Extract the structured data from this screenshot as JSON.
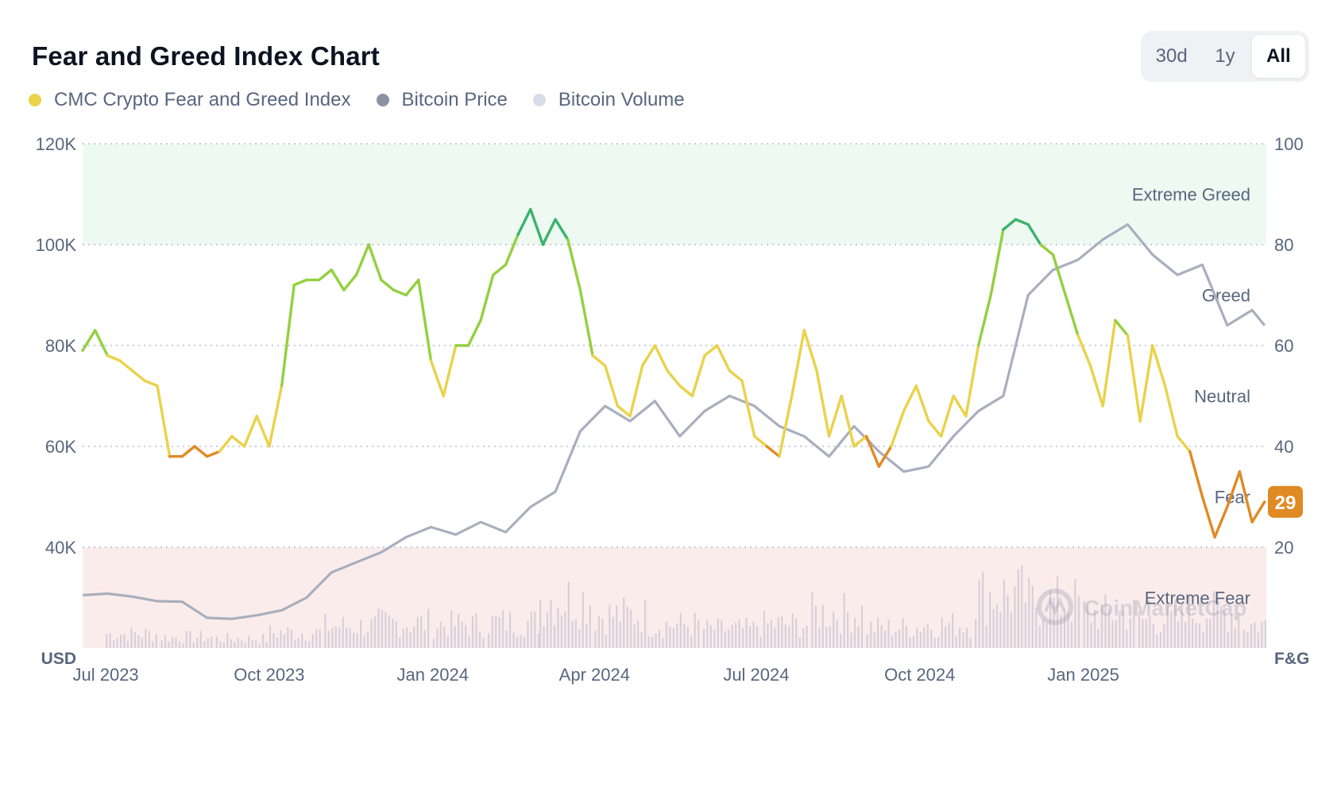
{
  "header": {
    "title": "Fear and Greed Index Chart",
    "tabs": [
      {
        "label": "30d",
        "active": false
      },
      {
        "label": "1y",
        "active": false
      },
      {
        "label": "All",
        "active": true
      }
    ]
  },
  "legend": [
    {
      "label": "CMC Crypto Fear and Greed Index",
      "color": "#ead24a"
    },
    {
      "label": "Bitcoin Price",
      "color": "#8b93a3"
    },
    {
      "label": "Bitcoin Volume",
      "color": "#d8dce8"
    }
  ],
  "colors": {
    "extreme_greed": "#3bb36b",
    "greed": "#93d040",
    "neutral": "#ead24a",
    "fear": "#e08a24",
    "extreme_fear": "#e03a3e",
    "btc_price": "#a8afbd",
    "btc_volume": "#d9cfda",
    "extreme_greed_band": "#eef9f2",
    "extreme_fear_band": "#fbecec"
  },
  "watermark": "CoinMarketCap",
  "chart_data": {
    "type": "line",
    "x_start": "2023-06-18",
    "x_end": "2025-04-14",
    "x_ticks": [
      "Jul 2023",
      "Oct 2023",
      "Jan 2024",
      "Apr 2024",
      "Jul 2024",
      "Oct 2024",
      "Jan 2025"
    ],
    "y_left": {
      "unit": "USD",
      "min": 20000,
      "max": 120000,
      "ticks": [
        "120K",
        "100K",
        "80K",
        "60K",
        "40K"
      ]
    },
    "y_right": {
      "unit": "F&G",
      "min": 0,
      "max": 100,
      "ticks": [
        "100",
        "80",
        "60",
        "40",
        "20"
      ]
    },
    "zones": [
      "Extreme Greed",
      "Greed",
      "Neutral",
      "Fear",
      "Extreme Fear"
    ],
    "current_value": "29",
    "series": [
      {
        "name": "CMC Crypto Fear and Greed Index",
        "axis": "right",
        "x": [
          "2023-06-18",
          "2023-06-25",
          "2023-07-02",
          "2023-07-09",
          "2023-07-16",
          "2023-07-23",
          "2023-07-30",
          "2023-08-06",
          "2023-08-13",
          "2023-08-20",
          "2023-08-27",
          "2023-09-03",
          "2023-09-10",
          "2023-09-17",
          "2023-09-24",
          "2023-10-01",
          "2023-10-08",
          "2023-10-15",
          "2023-10-22",
          "2023-10-29",
          "2023-11-05",
          "2023-11-12",
          "2023-11-19",
          "2023-11-26",
          "2023-12-03",
          "2023-12-10",
          "2023-12-17",
          "2023-12-24",
          "2023-12-31",
          "2024-01-07",
          "2024-01-14",
          "2024-01-21",
          "2024-01-28",
          "2024-02-04",
          "2024-02-11",
          "2024-02-18",
          "2024-02-25",
          "2024-03-03",
          "2024-03-10",
          "2024-03-17",
          "2024-03-24",
          "2024-03-31",
          "2024-04-07",
          "2024-04-14",
          "2024-04-21",
          "2024-04-28",
          "2024-05-05",
          "2024-05-12",
          "2024-05-19",
          "2024-05-26",
          "2024-06-02",
          "2024-06-09",
          "2024-06-16",
          "2024-06-23",
          "2024-06-30",
          "2024-07-07",
          "2024-07-14",
          "2024-07-21",
          "2024-07-28",
          "2024-08-04",
          "2024-08-11",
          "2024-08-18",
          "2024-08-25",
          "2024-09-01",
          "2024-09-08",
          "2024-09-15",
          "2024-09-22",
          "2024-09-29",
          "2024-10-06",
          "2024-10-13",
          "2024-10-20",
          "2024-10-27",
          "2024-11-03",
          "2024-11-10",
          "2024-11-17",
          "2024-11-24",
          "2024-12-01",
          "2024-12-08",
          "2024-12-15",
          "2024-12-22",
          "2024-12-29",
          "2025-01-05",
          "2025-01-12",
          "2025-01-19",
          "2025-01-26",
          "2025-02-02",
          "2025-02-09",
          "2025-02-16",
          "2025-02-23",
          "2025-03-02",
          "2025-03-09",
          "2025-03-16",
          "2025-03-23",
          "2025-03-30",
          "2025-04-06",
          "2025-04-13"
        ],
        "values": [
          59,
          63,
          58,
          57,
          55,
          53,
          52,
          38,
          38,
          40,
          38,
          39,
          42,
          40,
          46,
          40,
          52,
          72,
          73,
          73,
          75,
          71,
          74,
          80,
          73,
          71,
          70,
          73,
          57,
          50,
          60,
          60,
          65,
          74,
          76,
          82,
          87,
          80,
          85,
          81,
          71,
          58,
          56,
          48,
          46,
          56,
          60,
          55,
          52,
          50,
          58,
          60,
          55,
          53,
          42,
          40,
          38,
          50,
          63,
          55,
          42,
          50,
          40,
          42,
          36,
          40,
          47,
          52,
          45,
          42,
          50,
          46,
          60,
          70,
          83,
          85,
          84,
          80,
          78,
          70,
          62,
          56,
          48,
          65,
          62,
          45,
          60,
          52,
          42,
          39,
          30,
          22,
          28,
          35,
          25,
          29
        ]
      },
      {
        "name": "Bitcoin Price",
        "axis": "left",
        "x": [
          "2023-06-18",
          "2023-07-02",
          "2023-07-16",
          "2023-07-30",
          "2023-08-13",
          "2023-08-27",
          "2023-09-10",
          "2023-09-24",
          "2023-10-08",
          "2023-10-22",
          "2023-11-05",
          "2023-11-19",
          "2023-12-03",
          "2023-12-17",
          "2023-12-31",
          "2024-01-14",
          "2024-01-28",
          "2024-02-11",
          "2024-02-25",
          "2024-03-10",
          "2024-03-24",
          "2024-04-07",
          "2024-04-21",
          "2024-05-05",
          "2024-05-19",
          "2024-06-02",
          "2024-06-16",
          "2024-06-30",
          "2024-07-14",
          "2024-07-28",
          "2024-08-11",
          "2024-08-25",
          "2024-09-08",
          "2024-09-22",
          "2024-10-06",
          "2024-10-20",
          "2024-11-03",
          "2024-11-17",
          "2024-12-01",
          "2024-12-15",
          "2024-12-29",
          "2025-01-12",
          "2025-01-26",
          "2025-02-09",
          "2025-02-23",
          "2025-03-09",
          "2025-03-23",
          "2025-04-06",
          "2025-04-13"
        ],
        "values": [
          30500,
          30800,
          30200,
          29300,
          29200,
          26000,
          25800,
          26500,
          27500,
          30000,
          35000,
          37000,
          39000,
          42000,
          44000,
          42500,
          45000,
          43000,
          48000,
          51000,
          63000,
          68000,
          65000,
          69000,
          62000,
          67000,
          70000,
          68000,
          64000,
          62000,
          58000,
          64000,
          59000,
          55000,
          56000,
          62000,
          67000,
          70000,
          90000,
          95000,
          97000,
          101000,
          104000,
          98000,
          94000,
          96000,
          84000,
          87000,
          84000
        ]
      },
      {
        "name": "Bitcoin Volume",
        "axis": "volume",
        "x": [
          "2023-07",
          "2023-08",
          "2023-09",
          "2023-10",
          "2023-11",
          "2023-12",
          "2024-01",
          "2024-02",
          "2024-03",
          "2024-04",
          "2024-05",
          "2024-06",
          "2024-07",
          "2024-08",
          "2024-09",
          "2024-10",
          "2024-11",
          "2024-12",
          "2025-01",
          "2025-02",
          "2025-03",
          "2025-04"
        ],
        "values": [
          0.18,
          0.14,
          0.12,
          0.2,
          0.28,
          0.32,
          0.3,
          0.33,
          0.62,
          0.42,
          0.3,
          0.24,
          0.3,
          0.45,
          0.26,
          0.3,
          0.68,
          0.58,
          0.44,
          0.36,
          0.46,
          0.3
        ]
      }
    ]
  }
}
